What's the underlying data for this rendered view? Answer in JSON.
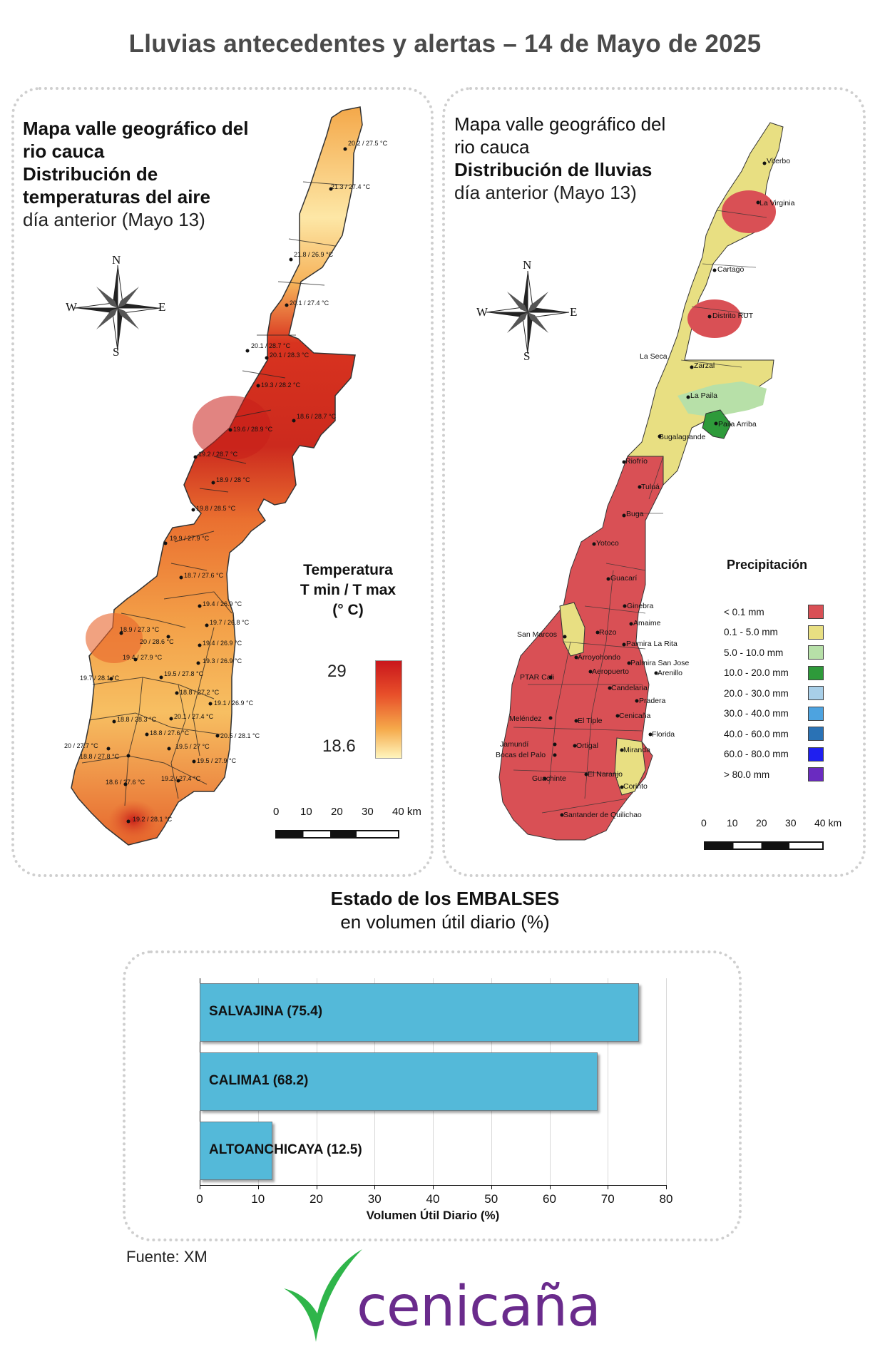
{
  "title": "Lluvias antecedentes y alertas – 14 de Mayo de 2025",
  "temp_panel": {
    "title_line1": "Mapa valle geográfico del",
    "title_line2": "rio cauca",
    "title_line3": "Distribución de",
    "title_line4": "temperaturas del aire",
    "title_line5": "día anterior (Mayo 13)",
    "compass": {
      "n": "N",
      "s": "S",
      "e": "E",
      "w": "W"
    },
    "legend_title_line1": "Temperatura",
    "legend_title_line2": "T min / T max",
    "legend_title_line3": "(° C)",
    "legend_max": "29",
    "legend_min": "18.6",
    "scale_labels": [
      "0",
      "10",
      "20",
      "30",
      "40 km"
    ],
    "stations": [
      "20.2 / 27.5 °C",
      "21.3 / 27.4 °C",
      "21.8 / 26.9 °C",
      "20.1 / 27.4 °C",
      "20.1 / 28.7 °C",
      "20.1 / 28.3 °C",
      "19.3 / 28.2 °C",
      "18.6 / 28.7 °C",
      "19.6 / 28.9 °C",
      "19.2 / 28.7 °C",
      "18.9 / 28 °C",
      "19.8 / 28.5 °C",
      "19.9 / 27.9 °C",
      "18.7 / 27.6 °C",
      "19.4 / 26.9 °C",
      "19.7 / 26.8 °C",
      "18.9 / 27.3 °C",
      "20 / 28.6 °C",
      "19.4 / 26.9 °C",
      "19.4 / 27.9 °C",
      "19.3 / 26.9 °C",
      "19.7 / 28.1 °C",
      "19.5 / 27.8 °C",
      "18.8 / 27.2 °C",
      "19.1 / 26.9 °C",
      "18.8 / 28.3 °C",
      "20.1 / 27.4 °C",
      "18.8 / 27.6 °C",
      "20.5 / 28.1 °C",
      "20 / 27.7 °C",
      "19.5 / 27 °C",
      "18.8 / 27.8 °C",
      "19.5 / 27.9 °C",
      "18.6 / 27.6 °C",
      "19.2 / 27.4 °C",
      "19.2 / 28.1 °C"
    ]
  },
  "rain_panel": {
    "title_line1": "Mapa valle geográfico del",
    "title_line2": "rio cauca",
    "title_line3": "Distribución de lluvias",
    "title_line4": "día anterior (Mayo 13)",
    "compass": {
      "n": "N",
      "s": "S",
      "e": "E",
      "w": "W"
    },
    "legend_title": "Precipitación",
    "legend": [
      {
        "label": "< 0.1 mm",
        "color": "#d95055"
      },
      {
        "label": "0.1 - 5.0 mm",
        "color": "#e8df82"
      },
      {
        "label": "5.0 - 10.0 mm",
        "color": "#b7e0a8"
      },
      {
        "label": "10.0 - 20.0 mm",
        "color": "#2e9a3a"
      },
      {
        "label": "20.0 - 30.0 mm",
        "color": "#a8cfe8"
      },
      {
        "label": "30.0 - 40.0 mm",
        "color": "#4da3e0"
      },
      {
        "label": "40.0 - 60.0 mm",
        "color": "#2a72b5"
      },
      {
        "label": "60.0 - 80.0 mm",
        "color": "#1f1ff0"
      },
      {
        "label": "> 80.0 mm",
        "color": "#6a2bc0"
      }
    ],
    "scale_labels": [
      "0",
      "10",
      "20",
      "30",
      "40 km"
    ],
    "cities": [
      "Viterbo",
      "La Virginia",
      "Cartago",
      "Distrito RUT",
      "La Seca",
      "Zarzal",
      "La Paila",
      "Paila Arriba",
      "Bugalagrande",
      "Riofrío",
      "Tuluá",
      "Buga",
      "Yotoco",
      "Guacarí",
      "Ginebra",
      "San Marcos",
      "Rozo",
      "Amaime",
      "Palmira La Rita",
      "Arroyohondo",
      "Palmira San Jose",
      "Aeropuerto",
      "Arenillo",
      "PTAR Cali",
      "Candelaria",
      "Pradera",
      "Meléndez",
      "El Tiple",
      "Cenicaña",
      "Florida",
      "Jamundí",
      "Bocas del Palo",
      "Ortigal",
      "Miranda",
      "El Naranjo",
      "Guachinte",
      "Corinto",
      "Santander de Quilichao"
    ]
  },
  "reservoirs": {
    "title": "Estado de los EMBALSES",
    "subtitle": "en volumen útil diario (%)",
    "xlabel": "Volumen Útil Diario (%)",
    "source": "Fuente: XM"
  },
  "chart_data": {
    "type": "bar",
    "orientation": "horizontal",
    "categories": [
      "SALVAJINA",
      "CALIMA1",
      "ALTOANCHICAYA"
    ],
    "values": [
      75.4,
      68.2,
      12.5
    ],
    "data_labels": [
      "SALVAJINA (75.4)",
      "CALIMA1 (68.2)",
      "ALTOANCHICAYA (12.5)"
    ],
    "xlabel": "Volumen Útil Diario (%)",
    "ylabel": "",
    "xlim": [
      0,
      80
    ],
    "xticks": [
      "0",
      "10",
      "20",
      "30",
      "40",
      "50",
      "60",
      "70",
      "80"
    ],
    "grid": true,
    "bar_color": "#54b9d9"
  },
  "logo": {
    "text": "cenicaña",
    "leaf_color": "#2fb54a",
    "text_color": "#6a2b8c"
  }
}
